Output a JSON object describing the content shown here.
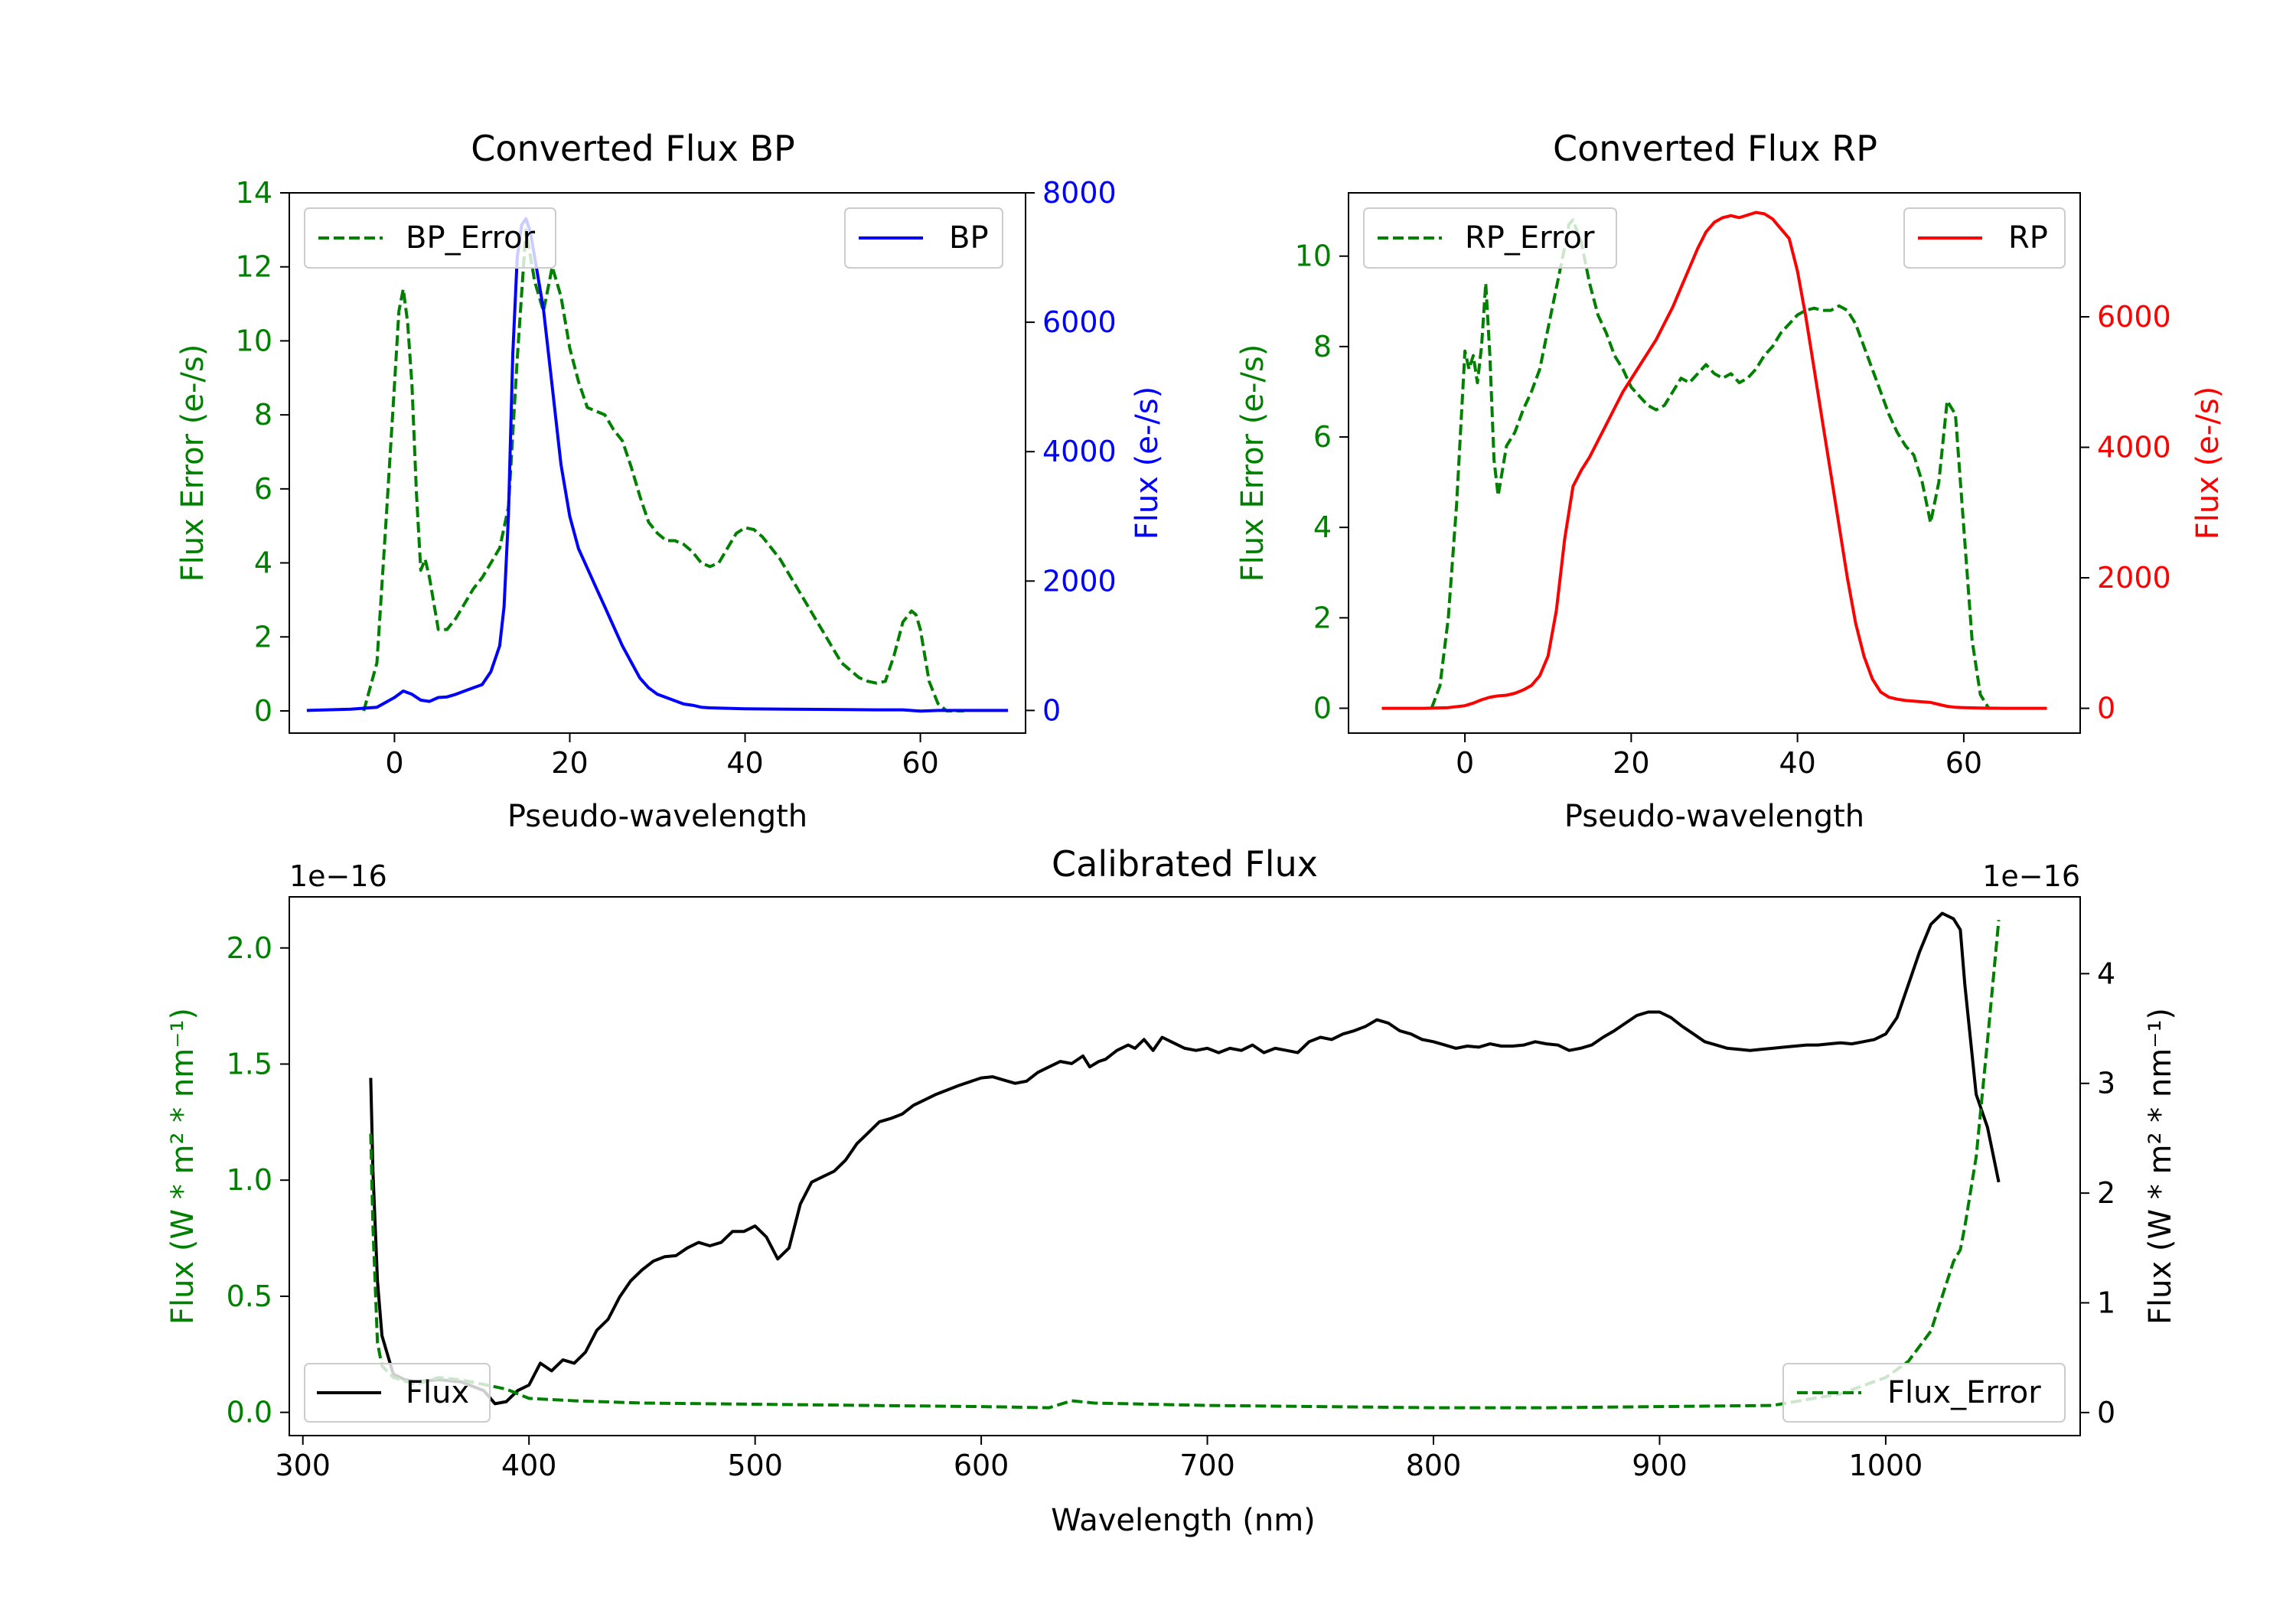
{
  "colors": {
    "error": "#008000",
    "bp": "#0000ff",
    "rp": "#ff0000",
    "flux": "#000000",
    "axis": "#000000"
  },
  "chart_data": [
    {
      "id": "bp",
      "type": "line",
      "title": "Converted Flux BP",
      "xlabel": "Pseudo-wavelength",
      "ylabel_left": "Flux Error (e-/s)",
      "ylabel_right": "Flux (e-/s)",
      "xlim": [
        -12,
        72
      ],
      "ylim_left": [
        -0.6,
        14
      ],
      "ylim_right": [
        -350,
        8000
      ],
      "xticks": [
        0,
        20,
        40,
        60
      ],
      "yticks_left": [
        0,
        2,
        4,
        6,
        8,
        10,
        12,
        14
      ],
      "yticks_right": [
        0,
        2000,
        4000,
        6000,
        8000
      ],
      "series": [
        {
          "name": "BP_Error",
          "axis": "left",
          "style": "dashed",
          "color_key": "error",
          "legend_pos": "upper-left",
          "x": [
            -3.5,
            -2,
            -1,
            0,
            0.5,
            1,
            1.5,
            2,
            2.5,
            3,
            3.5,
            4,
            5,
            6,
            7,
            8,
            9,
            10,
            11,
            12,
            13,
            14,
            15,
            16,
            17,
            18,
            19,
            20,
            21,
            22,
            23,
            24,
            25,
            26,
            27,
            28,
            29,
            30,
            31,
            32,
            33,
            34,
            35,
            36,
            37,
            38,
            39,
            40,
            41,
            42,
            43,
            44,
            45,
            46,
            47,
            48,
            49,
            50,
            51,
            52,
            53,
            54,
            55,
            56,
            57,
            58,
            59,
            59.5,
            60,
            60.5,
            61,
            62,
            63,
            64,
            65
          ],
          "y": [
            0,
            1.3,
            5,
            8.8,
            10.8,
            11.4,
            10.5,
            8.8,
            5.9,
            3.8,
            4.1,
            3.6,
            2.2,
            2.2,
            2.5,
            2.9,
            3.3,
            3.6,
            4,
            4.4,
            5.5,
            9.5,
            13,
            11.6,
            10.8,
            12,
            11.2,
            9.8,
            8.9,
            8.2,
            8.1,
            8.0,
            7.6,
            7.3,
            6.6,
            5.8,
            5.1,
            4.8,
            4.6,
            4.6,
            4.5,
            4.3,
            4.0,
            3.9,
            4.0,
            4.4,
            4.8,
            4.95,
            4.9,
            4.7,
            4.4,
            4.1,
            3.7,
            3.3,
            2.9,
            2.5,
            2.1,
            1.7,
            1.3,
            1.1,
            0.9,
            0.8,
            0.75,
            0.8,
            1.5,
            2.4,
            2.7,
            2.6,
            2.2,
            1.5,
            0.8,
            0.2,
            0,
            0,
            0
          ]
        },
        {
          "name": "BP",
          "axis": "right",
          "style": "solid",
          "color_key": "bp",
          "legend_pos": "upper-right",
          "x": [
            -10,
            -5,
            -2,
            0,
            1,
            2,
            3,
            4,
            5,
            6,
            7,
            8,
            9,
            10,
            11,
            12,
            12.5,
            13,
            13.5,
            14,
            14.5,
            15,
            15.5,
            16,
            17,
            18,
            19,
            20,
            21,
            22,
            23,
            24,
            25,
            26,
            27,
            28,
            29,
            30,
            31,
            32,
            33,
            34,
            35,
            36,
            40,
            45,
            50,
            55,
            58,
            60,
            62,
            65,
            70
          ],
          "y": [
            0,
            20,
            50,
            200,
            300,
            250,
            160,
            140,
            200,
            210,
            250,
            300,
            350,
            400,
            600,
            1000,
            1600,
            3000,
            5500,
            7000,
            7500,
            7600,
            7400,
            7000,
            6200,
            5000,
            3800,
            3000,
            2500,
            2200,
            1900,
            1600,
            1300,
            1000,
            750,
            500,
            350,
            250,
            200,
            150,
            100,
            80,
            50,
            40,
            25,
            20,
            15,
            10,
            10,
            -10,
            0,
            0,
            0
          ]
        }
      ]
    },
    {
      "id": "rp",
      "type": "line",
      "title": "Converted Flux RP",
      "xlabel": "Pseudo-wavelength",
      "ylabel_left": "Flux Error (e-/s)",
      "ylabel_right": "Flux (e-/s)",
      "xlim": [
        -14,
        74
      ],
      "ylim_left": [
        -0.55,
        11.4
      ],
      "ylim_right": [
        -380,
        7900
      ],
      "xticks": [
        0,
        20,
        40,
        60
      ],
      "yticks_left": [
        0,
        2,
        4,
        6,
        8,
        10
      ],
      "yticks_right": [
        0,
        2000,
        4000,
        6000
      ],
      "series": [
        {
          "name": "RP_Error",
          "axis": "left",
          "style": "dashed",
          "color_key": "error",
          "legend_pos": "upper-left",
          "x": [
            -4,
            -3,
            -2,
            -1,
            0,
            0.5,
            1,
            1.5,
            2,
            2.5,
            3,
            3.5,
            4,
            5,
            6,
            7,
            8,
            9,
            10,
            11,
            12,
            12.5,
            13,
            14,
            15,
            16,
            17,
            18,
            19,
            20,
            21,
            22,
            23,
            24,
            25,
            26,
            27,
            28,
            29,
            30,
            31,
            32,
            33,
            34,
            35,
            36,
            37,
            38,
            39,
            40,
            41,
            42,
            43,
            44,
            45,
            46,
            47,
            48,
            49,
            50,
            51,
            52,
            53,
            54,
            55,
            56,
            57,
            58,
            59,
            60,
            61,
            62,
            63,
            64
          ],
          "y": [
            0,
            0.5,
            2,
            4.5,
            7.9,
            7.5,
            7.8,
            7.2,
            8,
            9.4,
            7.8,
            5.5,
            4.7,
            5.8,
            6.1,
            6.6,
            7.0,
            7.5,
            8.4,
            9.3,
            10.2,
            10.7,
            10.8,
            10.3,
            9.4,
            8.7,
            8.3,
            7.8,
            7.5,
            7.1,
            6.9,
            6.7,
            6.6,
            6.7,
            7.0,
            7.3,
            7.2,
            7.4,
            7.6,
            7.4,
            7.3,
            7.4,
            7.2,
            7.3,
            7.5,
            7.8,
            8.0,
            8.3,
            8.5,
            8.7,
            8.8,
            8.85,
            8.8,
            8.8,
            8.9,
            8.8,
            8.5,
            8.0,
            7.5,
            7.0,
            6.5,
            6.1,
            5.8,
            5.6,
            5.0,
            4.1,
            5.0,
            6.8,
            6.5,
            4.0,
            1.5,
            0.3,
            0,
            0
          ]
        },
        {
          "name": "RP",
          "axis": "right",
          "style": "solid",
          "color_key": "rp",
          "legend_pos": "upper-right",
          "x": [
            -10,
            -5,
            -2,
            0,
            1,
            2,
            3,
            4,
            5,
            6,
            7,
            8,
            9,
            10,
            11,
            12,
            13,
            14,
            15,
            16,
            17,
            18,
            19,
            20,
            21,
            22,
            23,
            24,
            25,
            26,
            27,
            28,
            29,
            30,
            31,
            32,
            33,
            34,
            35,
            36,
            37,
            38,
            39,
            40,
            41,
            42,
            43,
            44,
            45,
            46,
            47,
            48,
            49,
            50,
            51,
            52,
            53,
            54,
            55,
            56,
            57,
            58,
            59,
            60,
            62,
            65,
            70
          ],
          "y": [
            0,
            0,
            10,
            40,
            80,
            130,
            170,
            190,
            200,
            230,
            280,
            350,
            500,
            800,
            1500,
            2600,
            3400,
            3650,
            3850,
            4100,
            4350,
            4600,
            4850,
            5050,
            5250,
            5450,
            5650,
            5900,
            6150,
            6450,
            6750,
            7050,
            7300,
            7450,
            7520,
            7550,
            7520,
            7560,
            7600,
            7580,
            7500,
            7350,
            7200,
            6700,
            6000,
            5200,
            4400,
            3600,
            2800,
            2000,
            1300,
            800,
            450,
            250,
            170,
            140,
            120,
            110,
            100,
            90,
            60,
            30,
            15,
            10,
            5,
            0,
            0
          ]
        }
      ]
    },
    {
      "id": "cal",
      "type": "line",
      "title": "Calibrated Flux",
      "xlabel": "Wavelength (nm)",
      "ylabel_left": "Flux (W * m² * nm⁻¹)",
      "ylabel_right": "Flux (W * m² * nm⁻¹)",
      "exponent_left": "1e−16",
      "exponent_right": "1e−16",
      "xlim": [
        294,
        1086
      ],
      "ylim_left": [
        -0.1,
        2.22
      ],
      "ylim_right": [
        -0.21,
        4.7
      ],
      "xticks": [
        300,
        400,
        500,
        600,
        700,
        800,
        900,
        1000
      ],
      "yticks_left": [
        0.0,
        0.5,
        1.0,
        1.5,
        2.0
      ],
      "yticks_left_labels": [
        "0.0",
        "0.5",
        "1.0",
        "1.5",
        "2.0"
      ],
      "yticks_right": [
        0,
        1,
        2,
        3,
        4
      ],
      "series": [
        {
          "name": "Flux",
          "axis": "right",
          "style": "solid",
          "color_key": "flux",
          "legend_pos": "lower-left",
          "x": [
            330,
            331,
            333,
            335,
            340,
            345,
            350,
            360,
            370,
            380,
            385,
            390,
            395,
            400,
            405,
            410,
            415,
            420,
            425,
            430,
            435,
            440,
            445,
            450,
            455,
            460,
            465,
            470,
            475,
            480,
            485,
            490,
            495,
            500,
            505,
            510,
            515,
            520,
            525,
            530,
            535,
            540,
            545,
            550,
            555,
            560,
            565,
            570,
            575,
            580,
            590,
            600,
            605,
            610,
            615,
            620,
            625,
            630,
            635,
            640,
            645,
            648,
            652,
            655,
            660,
            665,
            668,
            672,
            676,
            680,
            684,
            690,
            695,
            700,
            705,
            710,
            715,
            720,
            725,
            730,
            735,
            740,
            745,
            750,
            755,
            760,
            765,
            770,
            775,
            780,
            785,
            790,
            795,
            800,
            805,
            810,
            815,
            820,
            825,
            830,
            835,
            840,
            845,
            850,
            855,
            860,
            865,
            870,
            875,
            880,
            885,
            890,
            895,
            900,
            905,
            910,
            915,
            920,
            925,
            930,
            935,
            940,
            945,
            950,
            955,
            960,
            965,
            970,
            975,
            980,
            985,
            990,
            995,
            1000,
            1005,
            1010,
            1015,
            1020,
            1025,
            1030,
            1033,
            1035,
            1040,
            1045,
            1050
          ],
          "y": [
            3.05,
            2.2,
            1.2,
            0.7,
            0.35,
            0.3,
            0.28,
            0.3,
            0.28,
            0.2,
            0.08,
            0.1,
            0.2,
            0.25,
            0.45,
            0.38,
            0.48,
            0.45,
            0.55,
            0.75,
            0.85,
            1.05,
            1.2,
            1.3,
            1.38,
            1.42,
            1.43,
            1.5,
            1.55,
            1.52,
            1.55,
            1.65,
            1.65,
            1.7,
            1.6,
            1.4,
            1.5,
            1.9,
            2.1,
            2.15,
            2.2,
            2.3,
            2.45,
            2.55,
            2.65,
            2.68,
            2.72,
            2.8,
            2.85,
            2.9,
            2.98,
            3.05,
            3.06,
            3.03,
            3.0,
            3.02,
            3.1,
            3.15,
            3.2,
            3.18,
            3.25,
            3.15,
            3.2,
            3.22,
            3.3,
            3.35,
            3.32,
            3.4,
            3.3,
            3.42,
            3.38,
            3.32,
            3.3,
            3.32,
            3.28,
            3.32,
            3.3,
            3.35,
            3.28,
            3.32,
            3.3,
            3.28,
            3.38,
            3.42,
            3.4,
            3.45,
            3.48,
            3.52,
            3.58,
            3.55,
            3.48,
            3.45,
            3.4,
            3.38,
            3.35,
            3.32,
            3.34,
            3.33,
            3.36,
            3.34,
            3.34,
            3.35,
            3.38,
            3.36,
            3.35,
            3.3,
            3.32,
            3.35,
            3.42,
            3.48,
            3.55,
            3.62,
            3.65,
            3.65,
            3.6,
            3.52,
            3.45,
            3.38,
            3.35,
            3.32,
            3.31,
            3.3,
            3.31,
            3.32,
            3.33,
            3.34,
            3.35,
            3.35,
            3.36,
            3.37,
            3.36,
            3.38,
            3.4,
            3.45,
            3.6,
            3.9,
            4.2,
            4.45,
            4.55,
            4.5,
            4.4,
            3.9,
            2.9,
            2.6,
            2.1
          ]
        },
        {
          "name": "Flux_Error",
          "axis": "left",
          "style": "dashed",
          "color_key": "error",
          "legend_pos": "lower-right",
          "x": [
            330,
            331,
            333,
            335,
            340,
            350,
            360,
            370,
            380,
            390,
            400,
            420,
            450,
            500,
            550,
            600,
            630,
            640,
            650,
            700,
            750,
            800,
            850,
            900,
            950,
            980,
            1000,
            1010,
            1020,
            1025,
            1030,
            1033,
            1035,
            1040,
            1045,
            1050
          ],
          "y": [
            1.2,
            0.8,
            0.3,
            0.2,
            0.15,
            0.12,
            0.15,
            0.14,
            0.12,
            0.1,
            0.06,
            0.05,
            0.04,
            0.035,
            0.03,
            0.025,
            0.02,
            0.05,
            0.04,
            0.03,
            0.025,
            0.02,
            0.02,
            0.025,
            0.03,
            0.08,
            0.15,
            0.22,
            0.35,
            0.5,
            0.65,
            0.7,
            0.8,
            1.1,
            1.6,
            2.12
          ]
        }
      ]
    }
  ]
}
